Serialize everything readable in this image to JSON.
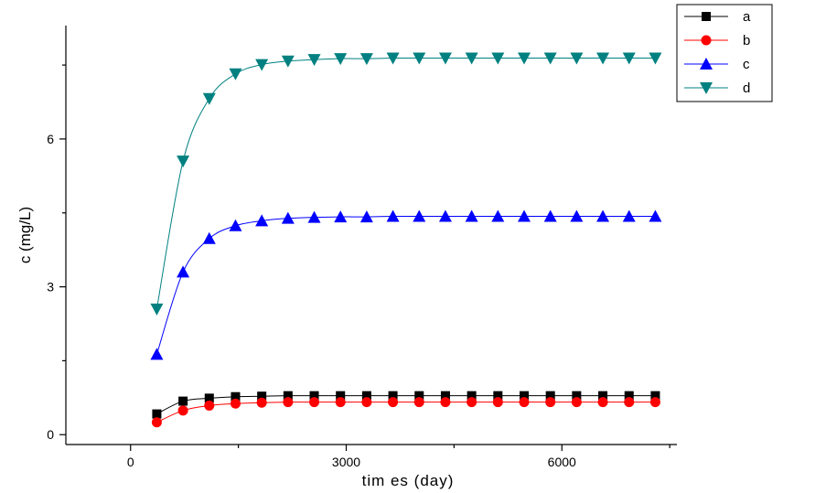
{
  "chart_data": {
    "type": "line",
    "title": "",
    "xlabel": "tim es  (day)",
    "ylabel": "c (mg/L)",
    "xlim": [
      -900,
      7600
    ],
    "ylim": [
      -0.2,
      8.3
    ],
    "xticks": [
      0,
      3000,
      6000
    ],
    "xtick_labels": [
      "0",
      "3000",
      "6000"
    ],
    "yticks": [
      0,
      3,
      6
    ],
    "ytick_labels": [
      "0",
      "3",
      "6"
    ],
    "grid": false,
    "legend_position": "top-right",
    "x": [
      365,
      730,
      1095,
      1460,
      1825,
      2190,
      2555,
      2920,
      3285,
      3650,
      4015,
      4380,
      4745,
      5110,
      5475,
      5840,
      6205,
      6570,
      6935,
      7300
    ],
    "series": [
      {
        "name": "a",
        "color": "#000000",
        "marker": "square",
        "values": [
          0.42,
          0.68,
          0.74,
          0.77,
          0.78,
          0.79,
          0.79,
          0.79,
          0.79,
          0.79,
          0.79,
          0.79,
          0.79,
          0.79,
          0.79,
          0.79,
          0.79,
          0.79,
          0.79,
          0.79
        ]
      },
      {
        "name": "b",
        "color": "#ff0000",
        "marker": "circle",
        "values": [
          0.25,
          0.49,
          0.59,
          0.63,
          0.65,
          0.66,
          0.66,
          0.66,
          0.66,
          0.66,
          0.66,
          0.66,
          0.66,
          0.66,
          0.66,
          0.66,
          0.66,
          0.66,
          0.66,
          0.66
        ]
      },
      {
        "name": "c",
        "color": "#0000ff",
        "marker": "triangle-up",
        "values": [
          1.63,
          3.3,
          3.98,
          4.24,
          4.34,
          4.39,
          4.41,
          4.42,
          4.42,
          4.43,
          4.43,
          4.43,
          4.43,
          4.43,
          4.43,
          4.43,
          4.43,
          4.43,
          4.43,
          4.43
        ]
      },
      {
        "name": "d",
        "color": "#008080",
        "marker": "triangle-down",
        "values": [
          2.55,
          5.55,
          6.82,
          7.32,
          7.51,
          7.58,
          7.61,
          7.63,
          7.63,
          7.64,
          7.64,
          7.64,
          7.64,
          7.64,
          7.64,
          7.64,
          7.64,
          7.64,
          7.64,
          7.64
        ]
      }
    ]
  }
}
